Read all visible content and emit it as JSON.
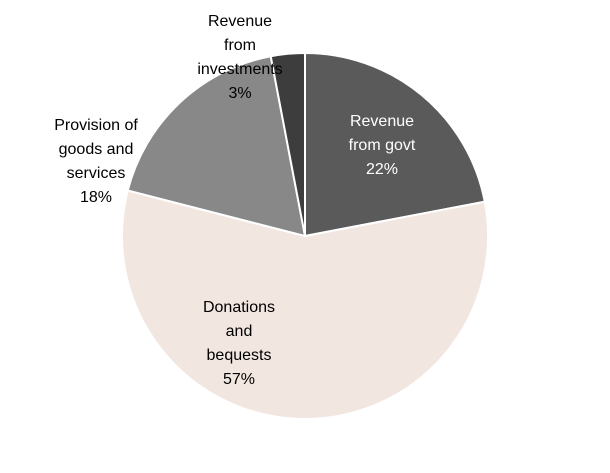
{
  "chart_data": {
    "type": "pie",
    "title": "",
    "start_angle_deg": 0,
    "direction": "clockwise",
    "slices": [
      {
        "label_lines": [
          "Revenue",
          "from govt"
        ],
        "label": "Revenue from govt",
        "value": 22,
        "value_label": "22%",
        "color": "#5a5a5a"
      },
      {
        "label_lines": [
          "Donations",
          "and",
          "bequests"
        ],
        "label": "Donations and bequests",
        "value": 57,
        "value_label": "57%",
        "color": "#f2e6e1"
      },
      {
        "label_lines": [
          "Provision of",
          "goods and",
          "services"
        ],
        "label": "Provision of goods and services",
        "value": 18,
        "value_label": "18%",
        "color": "#888888"
      },
      {
        "label_lines": [
          "Revenue",
          "from",
          "investments"
        ],
        "label": "Revenue from investments",
        "value": 3,
        "value_label": "3%",
        "color": "#3d3d3d"
      }
    ]
  }
}
